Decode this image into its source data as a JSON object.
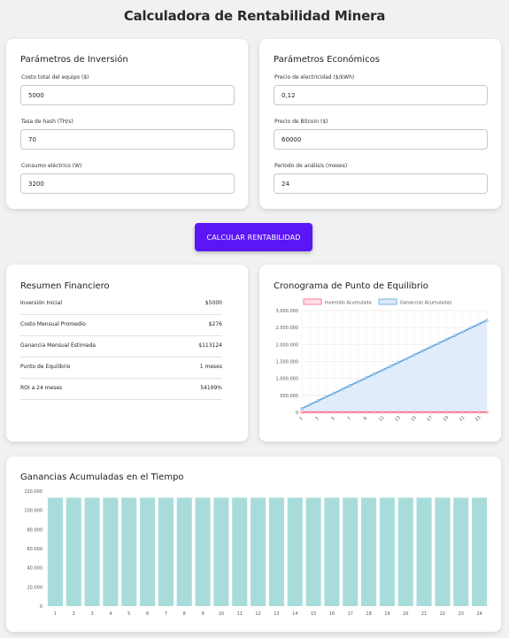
{
  "page": {
    "title": "Calculadora de Rentabilidad Minera"
  },
  "inversion": {
    "title": "Parámetros de Inversión",
    "fields": [
      {
        "label": "Costo total del equipo ($)",
        "value": "5000"
      },
      {
        "label": "Tasa de hash (TH/s)",
        "value": "70"
      },
      {
        "label": "Consumo eléctrico (W)",
        "value": "3200"
      }
    ]
  },
  "economicos": {
    "title": "Parámetros Económicos",
    "fields": [
      {
        "label": "Precio de electricidad ($/kWh)",
        "value": "0,12"
      },
      {
        "label": "Precio de Bitcoin ($)",
        "value": "60000"
      },
      {
        "label": "Período de análisis (meses)",
        "value": "24"
      }
    ]
  },
  "button": {
    "label": "CALCULAR RENTABILIDAD"
  },
  "resumen": {
    "title": "Resumen Financiero",
    "rows": [
      {
        "label": "Inversión Inicial",
        "value": "$5000"
      },
      {
        "label": "Costo Mensual Promedio",
        "value": "$276"
      },
      {
        "label": "Ganancia Mensual Estimada",
        "value": "$113124"
      },
      {
        "label": "Punto de Equilibrio",
        "value": "1 meses"
      },
      {
        "label": "ROI a 24 meses",
        "value": "54199%"
      }
    ]
  },
  "chart_data": [
    {
      "title": "Cronograma de Punto de Equilibrio",
      "type": "line",
      "x": [
        "1",
        "2",
        "3",
        "4",
        "5",
        "6",
        "7",
        "8",
        "9",
        "10",
        "11",
        "12",
        "13",
        "14",
        "15",
        "16",
        "17",
        "18",
        "19",
        "20",
        "21",
        "22",
        "23",
        "24"
      ],
      "xtick_labels": [
        "1",
        "3",
        "5",
        "7",
        "9",
        "11",
        "13",
        "15",
        "17",
        "19",
        "21",
        "23"
      ],
      "ylim": [
        0,
        3000000
      ],
      "yticks": [
        "0",
        "500.000",
        "1.000.000",
        "1.500.000",
        "2.000.000",
        "2.500.000",
        "3.000.000"
      ],
      "grid": true,
      "legend": "top",
      "series": [
        {
          "name": "Inversión Acumulada",
          "color": "#ff6384",
          "fill": "#ffdfe6",
          "values": [
            5000,
            5000,
            5000,
            5000,
            5000,
            5000,
            5000,
            5000,
            5000,
            5000,
            5000,
            5000,
            5000,
            5000,
            5000,
            5000,
            5000,
            5000,
            5000,
            5000,
            5000,
            5000,
            5000,
            5000
          ]
        },
        {
          "name": "Ganancias Acumuladas",
          "color": "#5aa3e0",
          "fill": "#dce9fa",
          "values": [
            113124,
            226248,
            339372,
            452496,
            565620,
            678744,
            791868,
            904992,
            1018116,
            1131240,
            1244364,
            1357488,
            1470612,
            1583736,
            1696860,
            1809984,
            1923108,
            2036232,
            2149356,
            2262480,
            2375604,
            2488728,
            2601852,
            2714976
          ]
        }
      ]
    },
    {
      "title": "Ganancias Acumuladas en el Tiempo",
      "type": "bar",
      "categories": [
        "1",
        "2",
        "3",
        "4",
        "5",
        "6",
        "7",
        "8",
        "9",
        "10",
        "11",
        "12",
        "13",
        "14",
        "15",
        "16",
        "17",
        "18",
        "19",
        "20",
        "21",
        "22",
        "23",
        "24"
      ],
      "values": [
        113124,
        113124,
        113124,
        113124,
        113124,
        113124,
        113124,
        113124,
        113124,
        113124,
        113124,
        113124,
        113124,
        113124,
        113124,
        113124,
        113124,
        113124,
        113124,
        113124,
        113124,
        113124,
        113124,
        113124
      ],
      "ylim": [
        0,
        120000
      ],
      "yticks": [
        "0",
        "20.000",
        "40.000",
        "60.000",
        "80.000",
        "100.000",
        "120.000"
      ],
      "grid": false,
      "color": "#a8dcdb"
    }
  ]
}
